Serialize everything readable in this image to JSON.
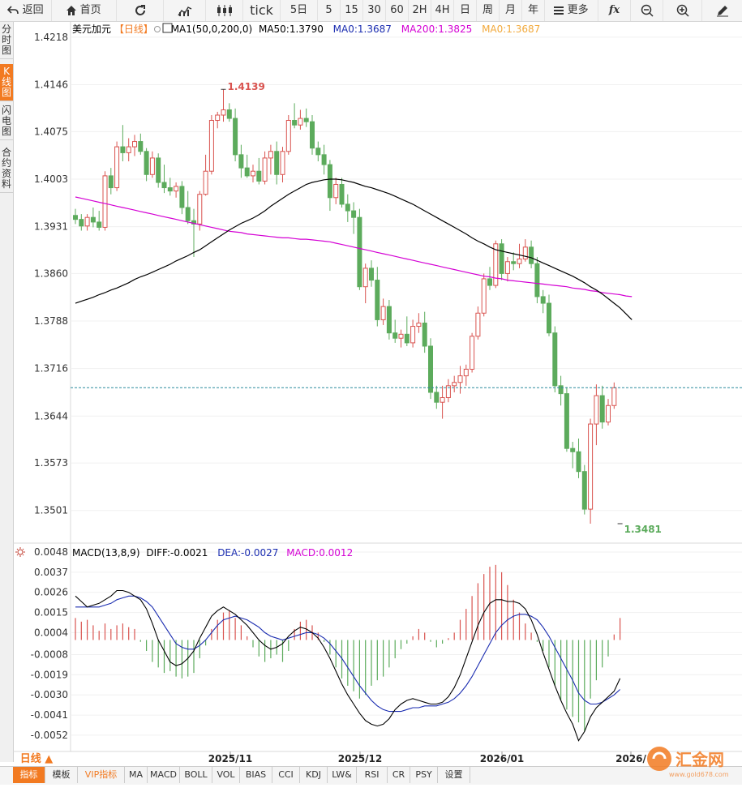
{
  "toolbar": {
    "back": "返回",
    "home": "首页",
    "periods": [
      "tick",
      "5日",
      "5",
      "15",
      "30",
      "60",
      "2H",
      "4H",
      "日",
      "周",
      "月",
      "年"
    ],
    "more": "更多",
    "icons": [
      "refresh-icon",
      "bar-chart-icon",
      "candlestick-icon",
      "fx-icon",
      "zoom-out-icon",
      "zoom-in-icon",
      "pen-icon"
    ]
  },
  "sidebar": {
    "tabs": [
      {
        "label": "分时图",
        "active": false
      },
      {
        "label": "K线图",
        "active": true
      },
      {
        "label": "闪电图",
        "active": false
      },
      {
        "label": "合约资料",
        "active": false
      }
    ]
  },
  "legend": {
    "name": "美元加元",
    "period": "【日线】",
    "ma1_label": "MA1(50,0,200,0)",
    "ma50": "MA50:1.3790",
    "ma0a": "MA0:1.3687",
    "ma200": "MA200:1.3825",
    "ma0b": "MA0:1.3687"
  },
  "macd_legend": {
    "name": "MACD(13,8,9)",
    "diff": "DIFF:-0.0021",
    "dea": "DEA:-0.0027",
    "macd": "MACD:0.0012"
  },
  "bottom": {
    "period_label": "日线 ▲",
    "tabs": [
      "指标",
      "模板",
      "VIP指标",
      "MA",
      "MACD",
      "BOLL",
      "VOL",
      "BIAS",
      "CCI",
      "KDJ",
      "LW&",
      "RSI",
      "CR",
      "PSY",
      "设置"
    ]
  },
  "watermark": {
    "text": "汇金网",
    "url": "www.gold678.com"
  },
  "colors": {
    "up": "#d9534f",
    "down": "#5cab5c",
    "ma50": "#000000",
    "ma200": "#d400d4",
    "ma0": "#f2a93b",
    "dea": "#1a2cb0",
    "accent": "#f27a21",
    "last_price_line": "#2b8a9e"
  },
  "chart_data": [
    {
      "type": "candlestick",
      "title": "美元加元 日线",
      "x_tick_labels": [
        "2025/11",
        "2025/12",
        "2026/01",
        "2026/"
      ],
      "ylim": [
        1.3454,
        1.424
      ],
      "y_ticks": [
        1.4218,
        1.4146,
        1.4075,
        1.4003,
        1.3931,
        1.386,
        1.3788,
        1.3716,
        1.3644,
        1.3573,
        1.3501
      ],
      "last_price": 1.3687,
      "annotations": [
        {
          "text": "1.4139",
          "value": 1.4139,
          "kind": "high",
          "index": 25
        },
        {
          "text": "1.3481",
          "value": 1.3481,
          "kind": "low",
          "index": 92
        }
      ],
      "candles": [
        [
          1.3948,
          1.3958,
          1.3935,
          1.3942
        ],
        [
          1.3942,
          1.395,
          1.3925,
          1.3932
        ],
        [
          1.3932,
          1.395,
          1.3925,
          1.3945
        ],
        [
          1.3945,
          1.396,
          1.393,
          1.3938
        ],
        [
          1.3938,
          1.3955,
          1.3925,
          1.393
        ],
        [
          1.393,
          1.4015,
          1.3925,
          1.4008
        ],
        [
          1.4008,
          1.402,
          1.398,
          1.399
        ],
        [
          1.399,
          1.406,
          1.3985,
          1.4052
        ],
        [
          1.4052,
          1.4085,
          1.403,
          1.4043
        ],
        [
          1.4043,
          1.4065,
          1.403,
          1.4052
        ],
        [
          1.4052,
          1.407,
          1.4038,
          1.406
        ],
        [
          1.406,
          1.4072,
          1.404,
          1.4045
        ],
        [
          1.4045,
          1.405,
          1.4,
          1.401
        ],
        [
          1.401,
          1.4045,
          1.4005,
          1.4035
        ],
        [
          1.4035,
          1.4042,
          1.399,
          1.3998
        ],
        [
          1.3998,
          1.4025,
          1.3982,
          1.399
        ],
        [
          1.399,
          1.4005,
          1.3978,
          1.3985
        ],
        [
          1.3985,
          1.3998,
          1.3975,
          1.3992
        ],
        [
          1.3992,
          1.4,
          1.395,
          1.396
        ],
        [
          1.396,
          1.3985,
          1.3935,
          1.394
        ],
        [
          1.394,
          1.3958,
          1.3885,
          1.3935
        ],
        [
          1.3935,
          1.3985,
          1.3925,
          1.398
        ],
        [
          1.398,
          1.404,
          1.3978,
          1.4015
        ],
        [
          1.4015,
          1.41,
          1.401,
          1.4092
        ],
        [
          1.4092,
          1.4105,
          1.408,
          1.41
        ],
        [
          1.41,
          1.4139,
          1.409,
          1.4108
        ],
        [
          1.4108,
          1.4118,
          1.409,
          1.4095
        ],
        [
          1.4095,
          1.411,
          1.403,
          1.404
        ],
        [
          1.404,
          1.4055,
          1.4005,
          1.402
        ],
        [
          1.402,
          1.404,
          1.4005,
          1.4008
        ],
        [
          1.4008,
          1.4025,
          1.3998,
          1.4015
        ],
        [
          1.4015,
          1.4035,
          1.3995,
          1.4
        ],
        [
          1.4,
          1.4045,
          1.3995,
          1.4035
        ],
        [
          1.4035,
          1.4055,
          1.401,
          1.4045
        ],
        [
          1.4045,
          1.406,
          1.3995,
          1.401
        ],
        [
          1.401,
          1.4052,
          1.3998,
          1.4045
        ],
        [
          1.4045,
          1.41,
          1.404,
          1.4092
        ],
        [
          1.4092,
          1.4118,
          1.408,
          1.4085
        ],
        [
          1.4085,
          1.4108,
          1.4078,
          1.4095
        ],
        [
          1.4095,
          1.411,
          1.4082,
          1.409
        ],
        [
          1.409,
          1.41,
          1.404,
          1.405
        ],
        [
          1.405,
          1.406,
          1.403,
          1.404
        ],
        [
          1.404,
          1.4055,
          1.401,
          1.4025
        ],
        [
          1.4025,
          1.4032,
          1.3955,
          1.3975
        ],
        [
          1.3975,
          1.4005,
          1.3965,
          1.3995
        ],
        [
          1.3995,
          1.4005,
          1.396,
          1.3965
        ],
        [
          1.3965,
          1.398,
          1.3938,
          1.3955
        ],
        [
          1.3955,
          1.3968,
          1.392,
          1.3945
        ],
        [
          1.3945,
          1.3958,
          1.3835,
          1.384
        ],
        [
          1.384,
          1.3875,
          1.3815,
          1.3868
        ],
        [
          1.3868,
          1.388,
          1.384,
          1.385
        ],
        [
          1.385,
          1.387,
          1.378,
          1.379
        ],
        [
          1.379,
          1.3822,
          1.3782,
          1.381
        ],
        [
          1.381,
          1.382,
          1.376,
          1.377
        ],
        [
          1.377,
          1.379,
          1.3755,
          1.3762
        ],
        [
          1.3762,
          1.3775,
          1.3748,
          1.3768
        ],
        [
          1.3768,
          1.3795,
          1.375,
          1.3755
        ],
        [
          1.3755,
          1.379,
          1.3748,
          1.378
        ],
        [
          1.378,
          1.38,
          1.377,
          1.3785
        ],
        [
          1.3785,
          1.3802,
          1.374,
          1.375
        ],
        [
          1.375,
          1.3762,
          1.367,
          1.368
        ],
        [
          1.368,
          1.369,
          1.3655,
          1.3665
        ],
        [
          1.3665,
          1.369,
          1.364,
          1.3672
        ],
        [
          1.3672,
          1.37,
          1.3665,
          1.369
        ],
        [
          1.369,
          1.3705,
          1.368,
          1.3695
        ],
        [
          1.3695,
          1.372,
          1.3678,
          1.3705
        ],
        [
          1.3705,
          1.3722,
          1.369,
          1.3715
        ],
        [
          1.3715,
          1.377,
          1.371,
          1.3765
        ],
        [
          1.3765,
          1.381,
          1.376,
          1.38
        ],
        [
          1.38,
          1.386,
          1.3795,
          1.3852
        ],
        [
          1.3852,
          1.387,
          1.3835,
          1.3842
        ],
        [
          1.3842,
          1.391,
          1.3838,
          1.3905
        ],
        [
          1.3905,
          1.3912,
          1.385,
          1.386
        ],
        [
          1.386,
          1.3885,
          1.3848,
          1.3878
        ],
        [
          1.3878,
          1.3892,
          1.3865,
          1.3875
        ],
        [
          1.3875,
          1.3905,
          1.3868,
          1.3882
        ],
        [
          1.3882,
          1.3912,
          1.3878,
          1.39
        ],
        [
          1.39,
          1.391,
          1.3868,
          1.3875
        ],
        [
          1.3875,
          1.3885,
          1.3815,
          1.3825
        ],
        [
          1.3825,
          1.3835,
          1.38,
          1.3815
        ],
        [
          1.3815,
          1.3828,
          1.3765,
          1.377
        ],
        [
          1.377,
          1.378,
          1.368,
          1.369
        ],
        [
          1.369,
          1.3705,
          1.366,
          1.3678
        ],
        [
          1.3678,
          1.3688,
          1.359,
          1.3595
        ],
        [
          1.3595,
          1.3605,
          1.3565,
          1.359
        ],
        [
          1.359,
          1.361,
          1.355,
          1.356
        ],
        [
          1.356,
          1.357,
          1.3495,
          1.3503
        ],
        [
          1.3503,
          1.364,
          1.3481,
          1.3632
        ],
        [
          1.3632,
          1.3692,
          1.36,
          1.3675
        ],
        [
          1.3675,
          1.369,
          1.3625,
          1.3635
        ],
        [
          1.3635,
          1.367,
          1.363,
          1.366
        ],
        [
          1.366,
          1.3695,
          1.3655,
          1.3687
        ]
      ],
      "ma50": [
        1.3815,
        1.3818,
        1.3821,
        1.3824,
        1.3828,
        1.3831,
        1.3835,
        1.3838,
        1.3842,
        1.3846,
        1.3851,
        1.3855,
        1.3858,
        1.3862,
        1.3866,
        1.387,
        1.3874,
        1.3879,
        1.3883,
        1.3887,
        1.3892,
        1.3896,
        1.3902,
        1.3908,
        1.3914,
        1.392,
        1.3926,
        1.3931,
        1.3936,
        1.394,
        1.3944,
        1.3949,
        1.3955,
        1.3962,
        1.3968,
        1.3974,
        1.398,
        1.3985,
        1.399,
        1.3995,
        1.3998,
        1.4,
        1.4002,
        1.4003,
        1.4003,
        1.4002,
        1.4,
        1.3998,
        1.3995,
        1.3992,
        1.399,
        1.3987,
        1.3984,
        1.3981,
        1.3977,
        1.3973,
        1.3969,
        1.3965,
        1.396,
        1.3955,
        1.395,
        1.3945,
        1.394,
        1.3935,
        1.393,
        1.3925,
        1.392,
        1.3914,
        1.3909,
        1.3905,
        1.39,
        1.3896,
        1.3894,
        1.3892,
        1.389,
        1.3888,
        1.3886,
        1.3884,
        1.388,
        1.3876,
        1.3872,
        1.3868,
        1.3864,
        1.386,
        1.3856,
        1.3851,
        1.3846,
        1.384,
        1.3835,
        1.3829,
        1.3822,
        1.3815,
        1.3808,
        1.3799,
        1.379
      ],
      "ma200": [
        1.3976,
        1.3974,
        1.3972,
        1.397,
        1.3968,
        1.3966,
        1.3964,
        1.3962,
        1.396,
        1.3958,
        1.3956,
        1.3954,
        1.3952,
        1.395,
        1.3948,
        1.3946,
        1.3944,
        1.3942,
        1.394,
        1.3938,
        1.3936,
        1.3934,
        1.3932,
        1.393,
        1.3928,
        1.3926,
        1.3924,
        1.3923,
        1.3922,
        1.392,
        1.3919,
        1.3918,
        1.3917,
        1.3916,
        1.3915,
        1.3914,
        1.3914,
        1.3913,
        1.3912,
        1.3912,
        1.3911,
        1.391,
        1.3909,
        1.3908,
        1.3906,
        1.3904,
        1.3902,
        1.39,
        1.3898,
        1.3896,
        1.3894,
        1.3892,
        1.389,
        1.3888,
        1.3886,
        1.3884,
        1.3882,
        1.388,
        1.3878,
        1.3876,
        1.3874,
        1.3872,
        1.387,
        1.3868,
        1.3866,
        1.3864,
        1.3862,
        1.386,
        1.3858,
        1.3856,
        1.3855,
        1.3853,
        1.3852,
        1.385,
        1.3849,
        1.3848,
        1.3847,
        1.3846,
        1.3845,
        1.3844,
        1.3843,
        1.3842,
        1.3841,
        1.384,
        1.3838,
        1.3837,
        1.3836,
        1.3834,
        1.3833,
        1.3831,
        1.383,
        1.3829,
        1.3828,
        1.3826,
        1.3825
      ]
    },
    {
      "type": "macd",
      "title": "MACD(13,8,9)",
      "ylim": [
        -0.006,
        0.0052
      ],
      "y_ticks": [
        0.0048,
        0.0037,
        0.0026,
        0.0015,
        0.0004,
        -0.0008,
        -0.0019,
        -0.003,
        -0.0041,
        -0.0052
      ],
      "hist": [
        0.0012,
        0.001,
        0.0011,
        0.0008,
        0.0005,
        0.0009,
        0.0006,
        0.0008,
        0.0009,
        0.0007,
        0.0006,
        -0.0001,
        -0.0006,
        -0.0012,
        -0.0015,
        -0.0018,
        -0.0017,
        -0.002,
        -0.0021,
        -0.002,
        -0.0018,
        -0.001,
        -0.0003,
        0.0006,
        0.0011,
        0.0015,
        0.0016,
        0.0012,
        0.0008,
        0.0002,
        -0.0004,
        -0.0009,
        -0.0012,
        -0.001,
        -0.0008,
        -0.0012,
        -0.0006,
        0.0006,
        0.001,
        0.0011,
        0.0008,
        0.0004,
        -0.0001,
        -0.0008,
        -0.0015,
        -0.0021,
        -0.0025,
        -0.0028,
        -0.0032,
        -0.003,
        -0.0025,
        -0.0022,
        -0.002,
        -0.0015,
        -0.001,
        -0.0005,
        -0.0002,
        0.0002,
        0.0006,
        0.0004,
        -0.0001,
        -0.0004,
        -0.0002,
        0.0001,
        0.0004,
        0.0011,
        0.0017,
        0.0024,
        0.0031,
        0.0036,
        0.004,
        0.0041,
        0.0037,
        0.003,
        0.0022,
        0.0015,
        0.0009,
        0.0004,
        -0.0001,
        -0.0006,
        -0.0015,
        -0.0025,
        -0.0033,
        -0.0038,
        -0.0042,
        -0.0045,
        -0.005,
        -0.0032,
        -0.0022,
        -0.0015,
        -0.0009,
        0.0003,
        0.0012
      ],
      "diff": [
        0.0024,
        0.0021,
        0.0018,
        0.0019,
        0.002,
        0.0022,
        0.0024,
        0.0027,
        0.0027,
        0.0026,
        0.0024,
        0.0022,
        0.0017,
        0.0009,
        0.0,
        -0.0006,
        -0.0012,
        -0.0014,
        -0.0013,
        -0.001,
        -0.0006,
        0.0001,
        0.0007,
        0.0013,
        0.0016,
        0.0018,
        0.0016,
        0.0014,
        0.0011,
        0.0008,
        0.0004,
        0.0,
        -0.0003,
        -0.0005,
        -0.0004,
        -0.0002,
        0.0002,
        0.0005,
        0.0007,
        0.0006,
        0.0004,
        0.0001,
        -0.0004,
        -0.001,
        -0.0017,
        -0.0024,
        -0.003,
        -0.0035,
        -0.004,
        -0.0044,
        -0.0046,
        -0.0047,
        -0.0046,
        -0.0043,
        -0.0038,
        -0.0035,
        -0.0033,
        -0.0032,
        -0.0033,
        -0.0034,
        -0.0035,
        -0.0035,
        -0.0034,
        -0.0031,
        -0.0026,
        -0.0019,
        -0.001,
        -0.0001,
        0.0008,
        0.0015,
        0.002,
        0.0022,
        0.0022,
        0.0021,
        0.0021,
        0.002,
        0.0017,
        0.0011,
        0.0003,
        -0.0007,
        -0.0016,
        -0.0025,
        -0.0033,
        -0.004,
        -0.0046,
        -0.0055,
        -0.005,
        -0.0042,
        -0.0037,
        -0.0034,
        -0.0031,
        -0.0028,
        -0.0021
      ],
      "dea": [
        0.0018,
        0.0018,
        0.0018,
        0.0018,
        0.0018,
        0.0019,
        0.002,
        0.0022,
        0.0023,
        0.0024,
        0.0024,
        0.0023,
        0.0021,
        0.0018,
        0.0013,
        0.0008,
        0.0003,
        -0.0002,
        -0.0004,
        -0.0005,
        -0.0005,
        -0.0003,
        0.0,
        0.0004,
        0.0008,
        0.0011,
        0.0012,
        0.0013,
        0.0012,
        0.0011,
        0.0009,
        0.0007,
        0.0004,
        0.0002,
        0.0001,
        0.0,
        0.0001,
        0.0002,
        0.0003,
        0.0004,
        0.0004,
        0.0003,
        0.0001,
        -0.0002,
        -0.0006,
        -0.001,
        -0.0015,
        -0.002,
        -0.0025,
        -0.0029,
        -0.0033,
        -0.0036,
        -0.0038,
        -0.0039,
        -0.0039,
        -0.0039,
        -0.0038,
        -0.0037,
        -0.0037,
        -0.0036,
        -0.0036,
        -0.0036,
        -0.0035,
        -0.0034,
        -0.0032,
        -0.0029,
        -0.0025,
        -0.002,
        -0.0014,
        -0.0008,
        -0.0002,
        0.0004,
        0.0008,
        0.0011,
        0.0013,
        0.0014,
        0.0014,
        0.0013,
        0.0011,
        0.0007,
        0.0002,
        -0.0004,
        -0.001,
        -0.0016,
        -0.0022,
        -0.0029,
        -0.0033,
        -0.0035,
        -0.0035,
        -0.0034,
        -0.0032,
        -0.003,
        -0.0027
      ]
    }
  ]
}
